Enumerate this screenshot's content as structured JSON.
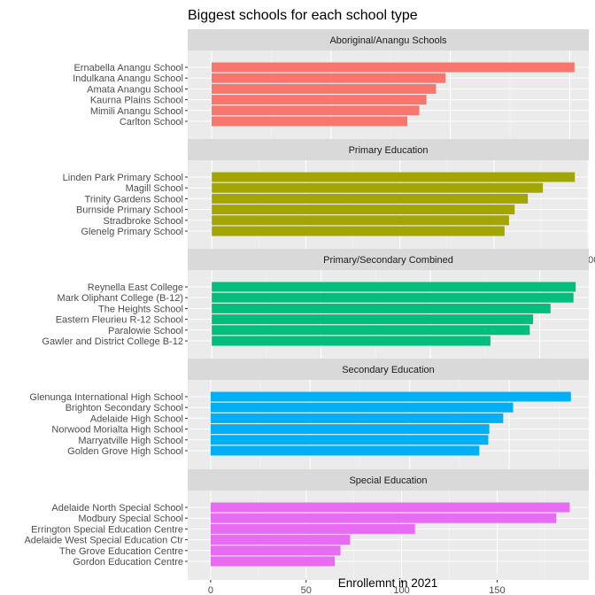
{
  "chart_data": {
    "type": "bar",
    "orientation": "horizontal",
    "title": "Biggest schools for each school type",
    "xlabel": "Enrollemnt in 2021",
    "ylabel": "",
    "grid": true,
    "legend": "none",
    "panels": [
      {
        "name": "Aboriginal/Anangu Schools",
        "color": "#F8766D",
        "xlim": [
          -10,
          158
        ],
        "ticks": [
          0,
          50,
          100,
          150
        ],
        "categories": [
          "Ernabella Anangu School",
          "Indulkana Anangu School",
          "Amata Anangu School",
          "Kaurna Plains School",
          "Mimili Anangu School",
          "Carlton School"
        ],
        "values": [
          152,
          98,
          94,
          90,
          87,
          82
        ]
      },
      {
        "name": "Primary Education",
        "color": "#A3A500",
        "xlim": [
          -64,
          1002
        ],
        "ticks": [
          0,
          250,
          500,
          750,
          1000
        ],
        "categories": [
          "Linden Park Primary School",
          "Magill School",
          "Trinity Gardens School",
          "Burnside Primary School",
          "Stradbroke School",
          "Glenelg Primary School"
        ],
        "values": [
          965,
          880,
          840,
          805,
          790,
          778
        ]
      },
      {
        "name": "Primary/Secondary Combined",
        "color": "#00BF7D",
        "xlim": [
          -110,
          1725
        ],
        "ticks": [
          0,
          500,
          1000,
          1500
        ],
        "categories": [
          "Reynella East College",
          "Mark Oliphant College (B-12)",
          "The Heights School",
          "Eastern Fleurieu R-12 School",
          "Paralowie School",
          "Gawler and District College B-12"
        ],
        "values": [
          1665,
          1655,
          1550,
          1470,
          1455,
          1275
        ]
      },
      {
        "name": "Secondary Education",
        "color": "#00B0F6",
        "xlim": [
          -115,
          1900
        ],
        "ticks": [
          0,
          500,
          1000,
          1500
        ],
        "categories": [
          "Glenunga International High School",
          "Brighton Secondary School",
          "Adelaide High School",
          "Norwood Morialta High School",
          "Marryatville High School",
          "Golden Grove High School"
        ],
        "values": [
          1810,
          1520,
          1470,
          1400,
          1395,
          1350
        ]
      },
      {
        "name": "Special Education",
        "color": "#E76BF3",
        "xlim": [
          -12,
          198
        ],
        "ticks": [
          0,
          50,
          100,
          150
        ],
        "categories": [
          "Adelaide North Special School",
          "Modbury Special School",
          "Errington Special Education Centre",
          "Adelaide West Special Education Ctr",
          "The Grove Education Centre",
          "Gordon Education Centre"
        ],
        "values": [
          188,
          181,
          107,
          73,
          68,
          65
        ]
      }
    ]
  }
}
